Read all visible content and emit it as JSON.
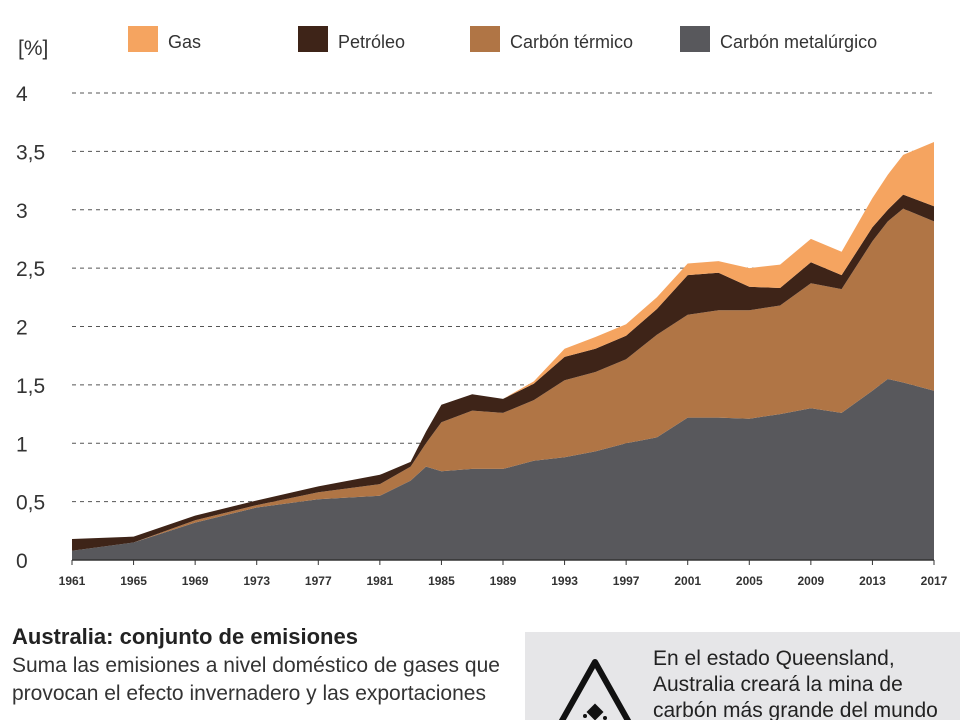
{
  "chart_data": {
    "type": "area",
    "stacked": true,
    "ylabel": "[%]",
    "ylim": [
      0,
      4
    ],
    "yticks": [
      "0",
      "0,5",
      "1",
      "1,5",
      "2",
      "2,5",
      "3",
      "3,5",
      "4"
    ],
    "xticks": [
      "1961",
      "1965",
      "1969",
      "1973",
      "1977",
      "1981",
      "1985",
      "1989",
      "1993",
      "1997",
      "2001",
      "2005",
      "2009",
      "2013",
      "2017"
    ],
    "xlim": [
      1961,
      2017
    ],
    "grid": true,
    "legend_position": "top",
    "x": [
      1961,
      1965,
      1969,
      1973,
      1977,
      1981,
      1983,
      1984,
      1985,
      1987,
      1989,
      1991,
      1993,
      1995,
      1997,
      1999,
      2001,
      2003,
      2005,
      2007,
      2009,
      2011,
      2013,
      2014,
      2015,
      2017
    ],
    "series": [
      {
        "name": "Carbón metalúrgico",
        "color": "#58585c",
        "values": [
          0.08,
          0.15,
          0.32,
          0.45,
          0.52,
          0.55,
          0.68,
          0.8,
          0.76,
          0.78,
          0.78,
          0.85,
          0.88,
          0.93,
          1.0,
          1.05,
          1.22,
          1.22,
          1.21,
          1.25,
          1.3,
          1.26,
          1.45,
          1.55,
          1.52,
          1.45
        ]
      },
      {
        "name": "Carbón térmico",
        "color": "#b07545",
        "values": [
          0.0,
          0.0,
          0.02,
          0.02,
          0.06,
          0.1,
          0.12,
          0.2,
          0.42,
          0.5,
          0.48,
          0.52,
          0.66,
          0.68,
          0.72,
          0.88,
          0.88,
          0.92,
          0.93,
          0.93,
          1.07,
          1.06,
          1.28,
          1.35,
          1.49,
          1.45
        ]
      },
      {
        "name": "Petróleo",
        "color": "#3e2418",
        "values": [
          0.1,
          0.05,
          0.04,
          0.04,
          0.05,
          0.08,
          0.04,
          0.1,
          0.15,
          0.14,
          0.12,
          0.14,
          0.2,
          0.2,
          0.2,
          0.22,
          0.34,
          0.32,
          0.2,
          0.15,
          0.18,
          0.12,
          0.12,
          0.1,
          0.12,
          0.13
        ]
      },
      {
        "name": "Gas",
        "color": "#f5a460",
        "values": [
          0.0,
          0.0,
          0.0,
          0.0,
          0.0,
          0.0,
          0.0,
          0.0,
          0.0,
          0.0,
          0.0,
          0.02,
          0.07,
          0.1,
          0.1,
          0.1,
          0.1,
          0.1,
          0.16,
          0.2,
          0.2,
          0.2,
          0.25,
          0.3,
          0.34,
          0.55
        ]
      }
    ],
    "legend": [
      "Gas",
      "Petróleo",
      "Carbón térmico",
      "Carbón metalúrgico"
    ]
  },
  "caption": {
    "title": "Australia: conjunto de emisiones",
    "text": "Suma las emisiones a nivel doméstico de gases que provocan el efecto invernadero y las exportaciones"
  },
  "sidebox": {
    "text": "En el estado Queensland, Australia creará la mina de carbón más grande del mundo",
    "icon": "warning-icon"
  }
}
